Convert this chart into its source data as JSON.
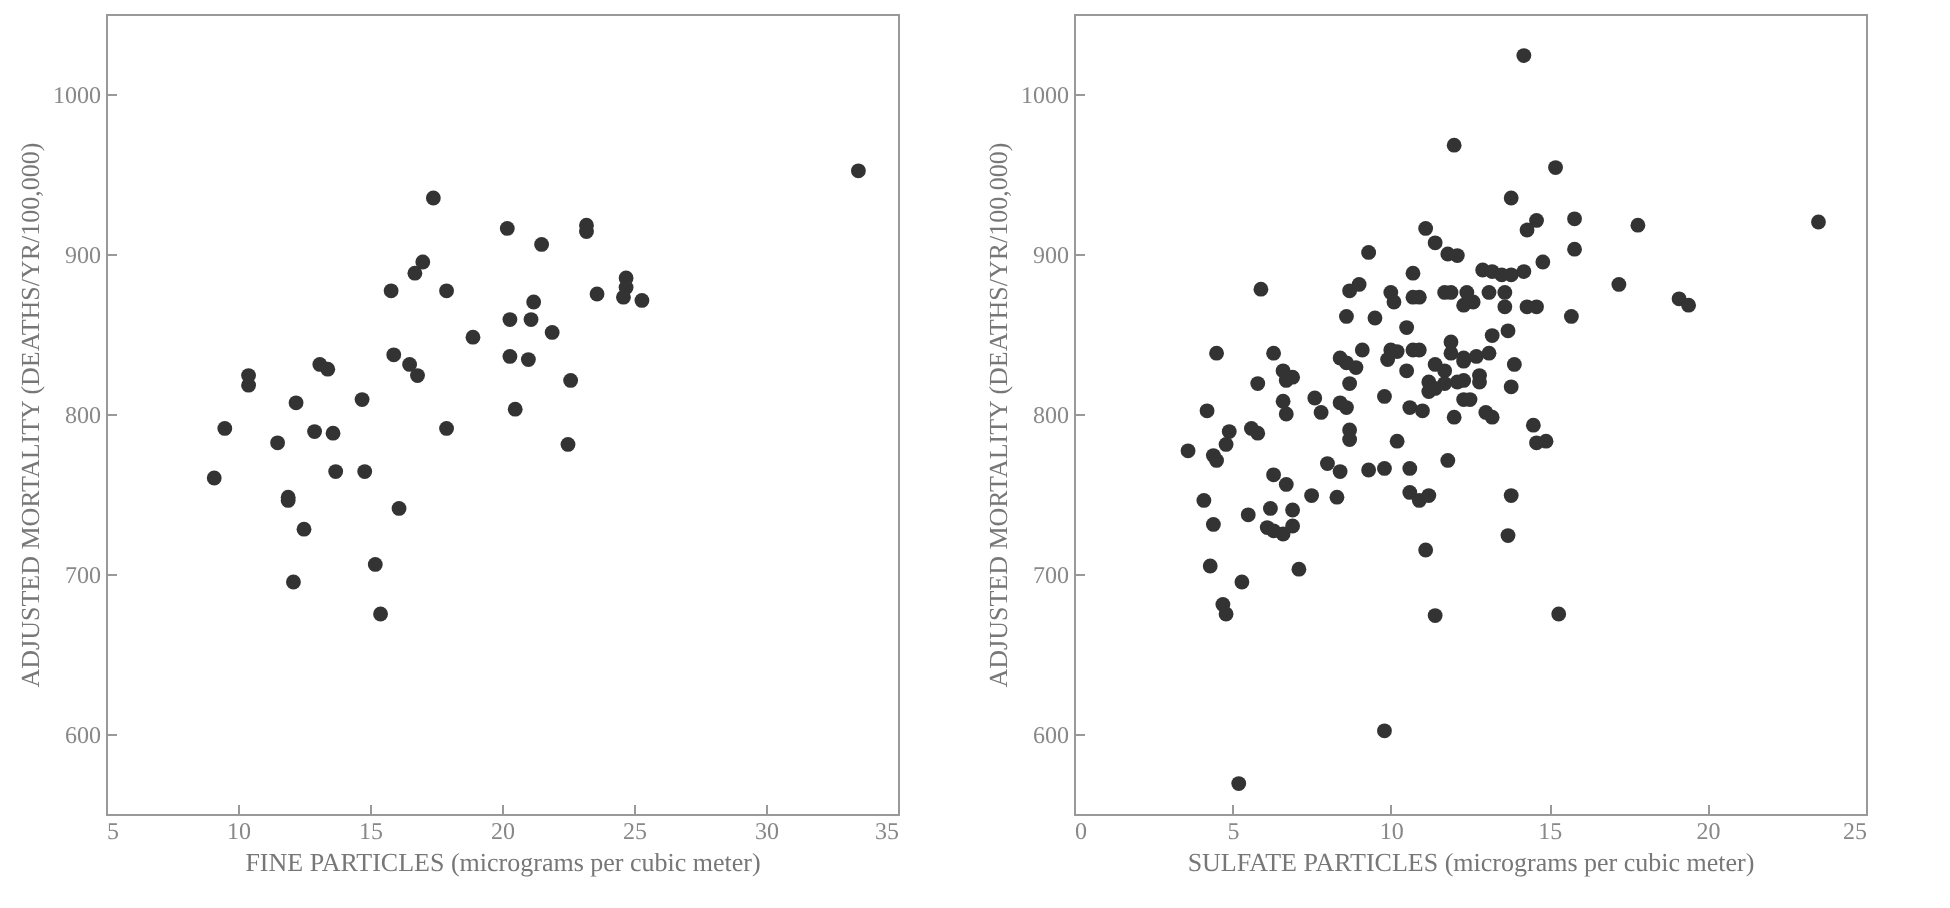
{
  "chart_data": [
    {
      "type": "scatter",
      "xlabel": "FINE PARTICLES (micrograms per cubic meter)",
      "ylabel": "ADJUSTED MORTALITY (DEATHS/YR/100,000)",
      "xlim": [
        5,
        35
      ],
      "xticks": [
        5,
        10,
        15,
        20,
        25,
        30,
        35
      ],
      "ylim": [
        550,
        1050
      ],
      "yticks": [
        600,
        700,
        800,
        900,
        1000
      ],
      "grid": false,
      "marker": "circle",
      "series": [
        {
          "color": "#333333",
          "x": [
            33.5,
            17.4,
            20.2,
            23.2,
            23.2,
            21.5,
            17.0,
            16.7,
            15.8,
            17.9,
            24.7,
            24.7,
            24.6,
            23.6,
            25.3,
            21.2,
            20.3,
            21.1,
            21.9,
            18.9,
            15.9,
            20.3,
            21.0,
            16.5,
            16.8,
            13.1,
            13.4,
            10.4,
            10.4,
            22.6,
            12.2,
            14.7,
            20.5,
            9.5,
            17.9,
            11.5,
            12.9,
            13.6,
            22.5,
            9.1,
            13.7,
            14.8,
            11.9,
            11.9,
            16.1,
            12.5,
            15.2,
            12.1,
            15.4
          ],
          "values": [
            952,
            935,
            916,
            918,
            914,
            906,
            895,
            888,
            877,
            877,
            885,
            879,
            873,
            875,
            871,
            870,
            859,
            859,
            851,
            848,
            837,
            836,
            834,
            831,
            824,
            831,
            828,
            824,
            818,
            821,
            807,
            809,
            803,
            791,
            791,
            782,
            789,
            788,
            781,
            760,
            764,
            764,
            748,
            746,
            741,
            728,
            706,
            695,
            675
          ]
        }
      ]
    },
    {
      "type": "scatter",
      "xlabel": "SULFATE PARTICLES (micrograms per cubic meter)",
      "ylabel": "ADJUSTED MORTALITY (DEATHS/YR/100,000)",
      "xlim": [
        0,
        25
      ],
      "xticks": [
        0,
        5,
        10,
        15,
        20,
        25
      ],
      "ylim": [
        550,
        1050
      ],
      "yticks": [
        600,
        700,
        800,
        900,
        1000
      ],
      "grid": false,
      "marker": "circle",
      "series": [
        {
          "color": "#333333",
          "x": [
            12.0,
            11.1,
            11.4,
            9.3,
            11.8,
            12.1,
            5.9,
            8.7,
            9.0,
            10.7,
            10.0,
            10.1,
            10.7,
            10.9,
            11.7,
            11.9,
            12.3,
            8.6,
            9.5,
            10.5,
            4.5,
            6.3,
            9.1,
            10.0,
            10.2,
            10.7,
            10.9,
            11.9,
            11.9,
            8.4,
            8.6,
            8.9,
            9.9,
            10.5,
            11.4,
            11.7,
            12.3,
            6.6,
            6.9,
            6.7,
            5.8,
            8.7,
            11.2,
            11.4,
            11.7,
            12.1,
            11.2,
            7.6,
            6.6,
            9.8,
            12.3,
            4.2,
            6.7,
            7.8,
            8.4,
            8.6,
            10.6,
            11.0,
            12.0,
            4.9,
            5.6,
            5.8,
            8.7,
            8.7,
            3.6,
            4.4,
            4.8,
            10.2,
            11.8,
            4.5,
            8.0,
            8.4,
            6.3,
            9.3,
            9.8,
            10.6,
            6.7,
            7.5,
            8.3,
            10.6,
            10.9,
            11.2,
            4.1,
            6.2,
            6.9,
            5.5,
            4.4,
            6.1,
            6.3,
            6.6,
            6.9,
            11.1,
            4.3,
            7.1,
            5.3,
            4.7,
            4.8,
            11.4,
            9.8,
            5.2,
            14.2,
            15.2,
            13.8,
            15.8,
            14.6,
            14.3,
            17.8,
            23.5,
            15.8,
            14.8,
            17.2,
            19.1,
            19.4,
            15.7,
            12.9,
            13.2,
            13.5,
            13.8,
            14.2,
            12.4,
            13.1,
            13.6,
            12.6,
            13.6,
            14.3,
            14.6,
            13.7,
            13.2,
            12.3,
            12.7,
            13.1,
            13.9,
            13.8,
            12.8,
            12.8,
            12.3,
            12.5,
            13.0,
            13.2,
            14.5,
            14.6,
            14.9,
            13.8,
            13.7,
            15.3
          ],
          "values": [
            968,
            916,
            907,
            901,
            900,
            899,
            878,
            877,
            881,
            888,
            876,
            870,
            873,
            873,
            876,
            876,
            868,
            861,
            860,
            854,
            838,
            838,
            840,
            840,
            839,
            840,
            840,
            845,
            838,
            835,
            832,
            829,
            834,
            827,
            831,
            827,
            833,
            827,
            823,
            821,
            819,
            819,
            820,
            816,
            819,
            820,
            814,
            810,
            808,
            811,
            809,
            802,
            800,
            801,
            807,
            804,
            804,
            802,
            798,
            789,
            791,
            788,
            790,
            784,
            777,
            774,
            781,
            783,
            771,
            771,
            769,
            764,
            762,
            765,
            766,
            766,
            756,
            749,
            748,
            751,
            746,
            749,
            746,
            741,
            740,
            737,
            731,
            729,
            727,
            725,
            730,
            715,
            705,
            703,
            695,
            681,
            675,
            674,
            602,
            569,
            1024,
            954,
            935,
            922,
            921,
            915,
            918,
            920,
            903,
            895,
            881,
            872,
            868,
            861,
            890,
            889,
            887,
            887,
            889,
            876,
            876,
            876,
            870,
            867,
            867,
            867,
            852,
            849,
            835,
            836,
            838,
            831,
            817,
            824,
            820,
            821,
            809,
            801,
            798,
            793,
            782,
            783,
            749,
            724,
            675
          ]
        }
      ]
    }
  ]
}
